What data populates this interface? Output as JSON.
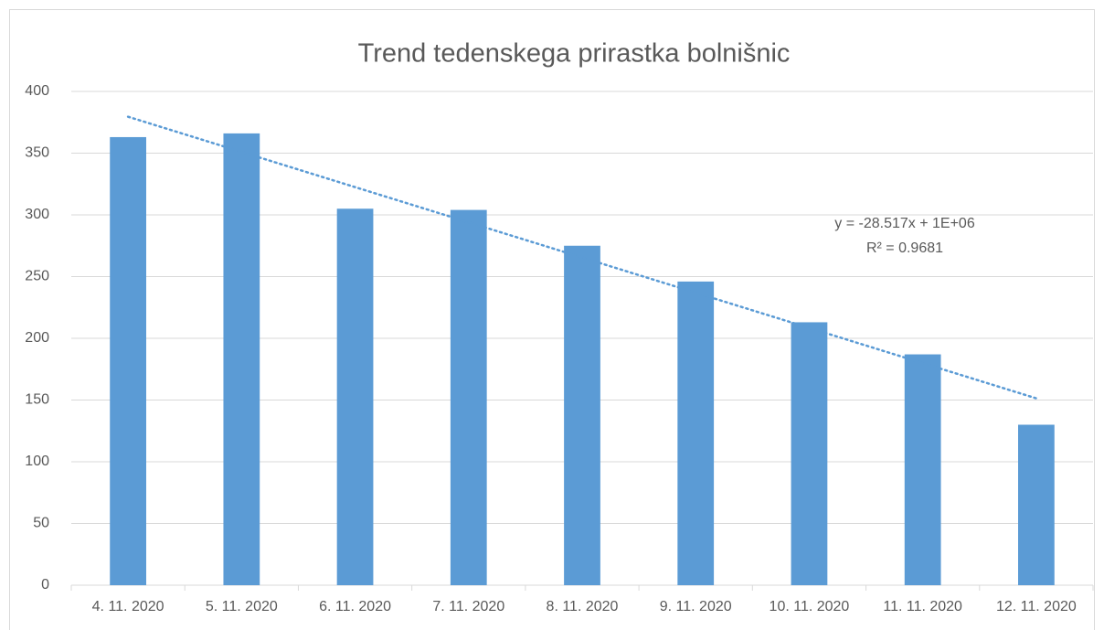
{
  "chart_data": {
    "type": "bar",
    "title": "Trend tedenskega prirastka bolnišnic",
    "categories": [
      "4. 11. 2020",
      "5. 11. 2020",
      "6. 11. 2020",
      "7. 11. 2020",
      "8. 11. 2020",
      "9. 11. 2020",
      "10. 11. 2020",
      "11. 11. 2020",
      "12. 11. 2020"
    ],
    "values": [
      363,
      366,
      305,
      304,
      275,
      246,
      213,
      187,
      130
    ],
    "color": "#5b9bd5",
    "ylim": [
      0,
      400
    ],
    "yticks": [
      0,
      50,
      100,
      150,
      200,
      250,
      300,
      350,
      400
    ],
    "grid": true,
    "trendline": {
      "type": "linear",
      "color": "#5b9bd5",
      "equation": "y = -28.517x + 1E+06",
      "r_squared": "R² = 0.9681"
    }
  }
}
